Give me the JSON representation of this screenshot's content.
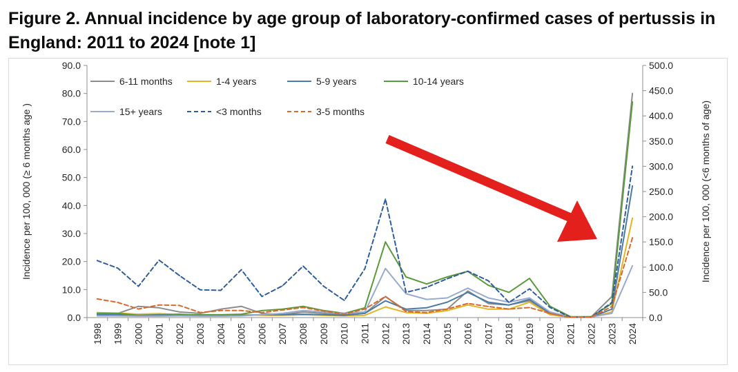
{
  "figure": {
    "title": "Figure 2. Annual incidence by age group of laboratory-confirmed cases of pertussis in England: 2011 to 2024 [note 1]"
  },
  "chart_data": {
    "type": "line",
    "title": "Figure 2. Annual incidence by age group of laboratory-confirmed cases of pertussis in England: 2011 to 2024 [note 1]",
    "xlabel": "",
    "ylabel": "Incidence per 100, 000 (≥ 6 months age )",
    "y2label": "Incidence per 100, 000 (<6 months of age)",
    "ylim": [
      0,
      90
    ],
    "y2lim": [
      0,
      500
    ],
    "yticks": [
      "0.0",
      "10.0",
      "20.0",
      "30.0",
      "40.0",
      "50.0",
      "60.0",
      "70.0",
      "80.0",
      "90.0"
    ],
    "y2ticks": [
      "0.0",
      "50.0",
      "100.0",
      "150.0",
      "200.0",
      "250.0",
      "300.0",
      "350.0",
      "400.0",
      "450.0",
      "500.0"
    ],
    "grid": false,
    "legend": "top-left",
    "annotation": "red arrow pointing down-right toward 2024",
    "x": [
      "1998",
      "1999",
      "2000",
      "2001",
      "2002",
      "2003",
      "2004",
      "2005",
      "2006",
      "2007",
      "2008",
      "2009",
      "2010",
      "2011",
      "2012",
      "2013",
      "2014",
      "2015",
      "2016",
      "2017",
      "2018",
      "2019",
      "2020",
      "2021",
      "2022",
      "2023",
      "2024"
    ],
    "series": [
      {
        "name": "6-11 months",
        "color": "#8c8c8c",
        "dash": false,
        "axis": "left",
        "values": [
          1.2,
          1.5,
          4.0,
          3.5,
          2.0,
          1.5,
          3.0,
          4.0,
          1.5,
          1.0,
          2.0,
          1.5,
          1.0,
          1.5,
          7.5,
          2.5,
          2.5,
          3.0,
          9.5,
          5.0,
          4.5,
          6.0,
          1.0,
          0.2,
          0.3,
          7.5,
          80.0
        ]
      },
      {
        "name": "1-4 years",
        "color": "#e6b422",
        "dash": false,
        "axis": "left",
        "values": [
          1.8,
          1.6,
          1.2,
          1.4,
          1.0,
          0.8,
          0.8,
          1.0,
          0.8,
          0.8,
          1.0,
          0.8,
          0.6,
          0.8,
          3.8,
          1.8,
          1.5,
          2.5,
          4.5,
          3.0,
          3.0,
          5.5,
          1.0,
          0.2,
          0.2,
          2.0,
          35.5
        ]
      },
      {
        "name": "5-9 years",
        "color": "#4a7ba6",
        "dash": false,
        "axis": "left",
        "values": [
          1.0,
          1.0,
          0.8,
          1.0,
          1.2,
          0.8,
          0.8,
          0.8,
          1.0,
          1.0,
          1.2,
          1.0,
          0.8,
          1.5,
          6.0,
          3.0,
          3.5,
          5.5,
          9.0,
          5.5,
          4.5,
          6.5,
          1.5,
          0.2,
          0.2,
          3.0,
          47.0
        ]
      },
      {
        "name": "10-14 years",
        "color": "#5a9a3a",
        "dash": false,
        "axis": "left",
        "values": [
          1.5,
          1.5,
          0.8,
          0.8,
          1.0,
          1.0,
          1.0,
          1.2,
          2.5,
          3.0,
          4.0,
          2.5,
          1.5,
          3.5,
          27.0,
          14.5,
          12.0,
          14.5,
          16.5,
          11.5,
          9.0,
          14.0,
          4.0,
          0.3,
          0.3,
          5.0,
          77.0
        ]
      },
      {
        "name": "15+ years",
        "color": "#98abcf",
        "dash": false,
        "axis": "left",
        "values": [
          0.6,
          0.6,
          0.5,
          0.5,
          0.6,
          0.5,
          0.5,
          0.6,
          1.0,
          1.5,
          2.5,
          2.0,
          1.5,
          2.0,
          17.5,
          8.5,
          6.5,
          7.0,
          10.5,
          7.0,
          5.5,
          7.0,
          2.0,
          0.2,
          0.2,
          1.5,
          18.5
        ]
      },
      {
        "name": "<3 months",
        "color": "#2e5d9e",
        "dash": true,
        "axis": "right",
        "values": [
          113,
          98,
          62,
          114,
          83,
          55,
          54,
          95,
          42,
          63,
          102,
          62,
          34,
          97,
          235,
          50,
          60,
          77,
          92,
          73,
          30,
          57,
          20,
          0.5,
          1.0,
          30,
          300
        ]
      },
      {
        "name": "3-5 months",
        "color": "#d9692a",
        "dash": true,
        "axis": "right",
        "values": [
          37,
          30,
          17,
          25,
          24,
          10,
          14,
          14,
          10,
          15,
          20,
          13,
          7,
          17,
          42,
          12,
          10,
          17,
          28,
          22,
          17,
          20,
          8,
          0.5,
          1.0,
          22,
          158
        ]
      }
    ]
  }
}
